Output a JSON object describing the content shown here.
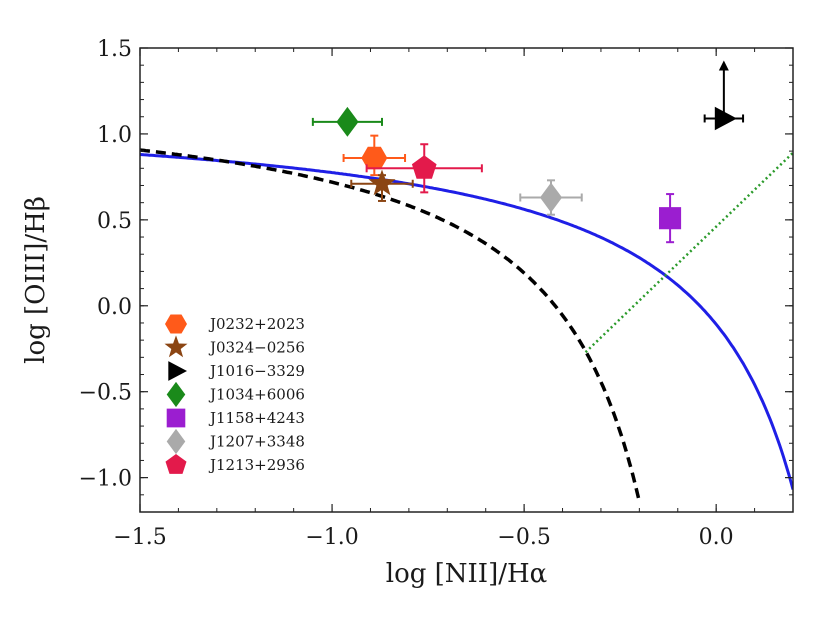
{
  "chart_data": {
    "type": "scatter",
    "title": "",
    "xlabel": "log [NII]/Hα",
    "ylabel": "log [OIII]/Hβ",
    "xlim": [
      -1.5,
      0.2
    ],
    "ylim": [
      -1.2,
      1.5
    ],
    "grid": false,
    "legend_position": "lower-left",
    "x_ticks": [
      {
        "value": -1.5,
        "label": "−1.5"
      },
      {
        "value": -1.0,
        "label": "−1.0"
      },
      {
        "value": -0.5,
        "label": "−0.5"
      },
      {
        "value": 0.0,
        "label": "0.0"
      }
    ],
    "y_ticks": [
      {
        "value": -1.0,
        "label": "−1.0"
      },
      {
        "value": -0.5,
        "label": "−0.5"
      },
      {
        "value": 0.0,
        "label": "0.0"
      },
      {
        "value": 0.5,
        "label": "0.5"
      },
      {
        "value": 1.0,
        "label": "1.0"
      },
      {
        "value": 1.5,
        "label": "1.5"
      }
    ],
    "curves": [
      {
        "name": "kewley-2001",
        "style": "solid",
        "color": "#1f1fe6",
        "formula": "0.61/(x-0.47)+1.19",
        "x_max": 0.2
      },
      {
        "name": "kauffmann-2003",
        "style": "dashed",
        "color": "#000000",
        "formula": "0.61/(x-0.05)+1.3",
        "x_max": -0.2
      },
      {
        "name": "agn-liner-line",
        "style": "dotted",
        "color": "#2a9a2a",
        "points": [
          [
            -0.34,
            -0.27
          ],
          [
            0.2,
            0.89
          ]
        ]
      }
    ],
    "series": [
      {
        "name": "J0232+2023",
        "marker": "hexagon",
        "color": "#ff5a1a",
        "x": -0.89,
        "y": 0.86,
        "xerr": [
          0.08,
          0.08
        ],
        "yerr": [
          0.1,
          0.13
        ],
        "legend": "J0232+2023"
      },
      {
        "name": "J0324−0256",
        "marker": "star",
        "color": "#8b4513",
        "x": -0.87,
        "y": 0.71,
        "xerr": [
          0.08,
          0.08
        ],
        "yerr": [
          0.1,
          0.05
        ],
        "legend": "J0324−0256"
      },
      {
        "name": "J1016−3329",
        "marker": "triangle-right",
        "color": "#000000",
        "x": 0.02,
        "y": 1.09,
        "xerr": [
          0.05,
          0.05
        ],
        "yerr": [
          0.0,
          0.0
        ],
        "upper_arrow": true,
        "legend": "J1016−3329"
      },
      {
        "name": "J1034+6006",
        "marker": "diamond",
        "color": "#1a8a1a",
        "x": -0.96,
        "y": 1.07,
        "xerr": [
          0.09,
          0.09
        ],
        "yerr": [
          0.04,
          0.04
        ],
        "legend": "J1034+6006"
      },
      {
        "name": "J1158+4243",
        "marker": "square",
        "color": "#9b1ed0",
        "x": -0.12,
        "y": 0.51,
        "xerr": [
          0.0,
          0.0
        ],
        "yerr": [
          0.14,
          0.14
        ],
        "legend": "J1158+4243"
      },
      {
        "name": "J1207+3348",
        "marker": "diamond",
        "color": "#aaaaaa",
        "x": -0.43,
        "y": 0.63,
        "xerr": [
          0.08,
          0.08
        ],
        "yerr": [
          0.1,
          0.1
        ],
        "legend": "J1207+3348"
      },
      {
        "name": "J1213+2936",
        "marker": "pentagon",
        "color": "#e31a4b",
        "x": -0.76,
        "y": 0.8,
        "xerr": [
          0.15,
          0.15
        ],
        "yerr": [
          0.14,
          0.14
        ],
        "legend": "J1213+2936"
      }
    ]
  }
}
